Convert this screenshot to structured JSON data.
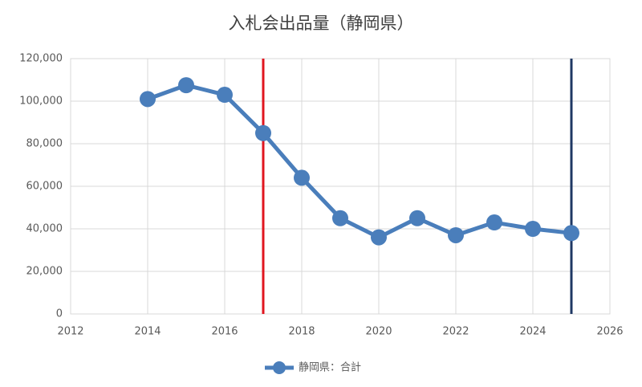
{
  "chart_data": {
    "type": "line",
    "title": "入札会出品量（静岡県）",
    "x": [
      2014,
      2015,
      2016,
      2017,
      2018,
      2019,
      2020,
      2021,
      2022,
      2023,
      2024,
      2025
    ],
    "series": [
      {
        "name": "静岡県：合計",
        "color": "#4a7ebb",
        "values": [
          101000,
          107500,
          103000,
          85000,
          64000,
          45000,
          36000,
          45000,
          37000,
          43000,
          40000,
          38000
        ]
      }
    ],
    "xlim": [
      2012,
      2026
    ],
    "xticks": [
      2012,
      2014,
      2016,
      2018,
      2020,
      2022,
      2024,
      2026
    ],
    "ylim": [
      0,
      120000
    ],
    "yticks": [
      0,
      {
        "value": 20000,
        "label": "20,000"
      },
      {
        "value": 40000,
        "label": "40,000"
      },
      {
        "value": 60000,
        "label": "60,000"
      },
      {
        "value": 80000,
        "label": "80,000"
      },
      {
        "value": 100000,
        "label": "100,000"
      },
      {
        "value": 120000,
        "label": "120,000"
      }
    ],
    "vlines": [
      {
        "x": 2017,
        "color": "#e0161f"
      },
      {
        "x": 2025,
        "color": "#1f3864"
      }
    ],
    "grid": true,
    "legend": "bottom"
  }
}
